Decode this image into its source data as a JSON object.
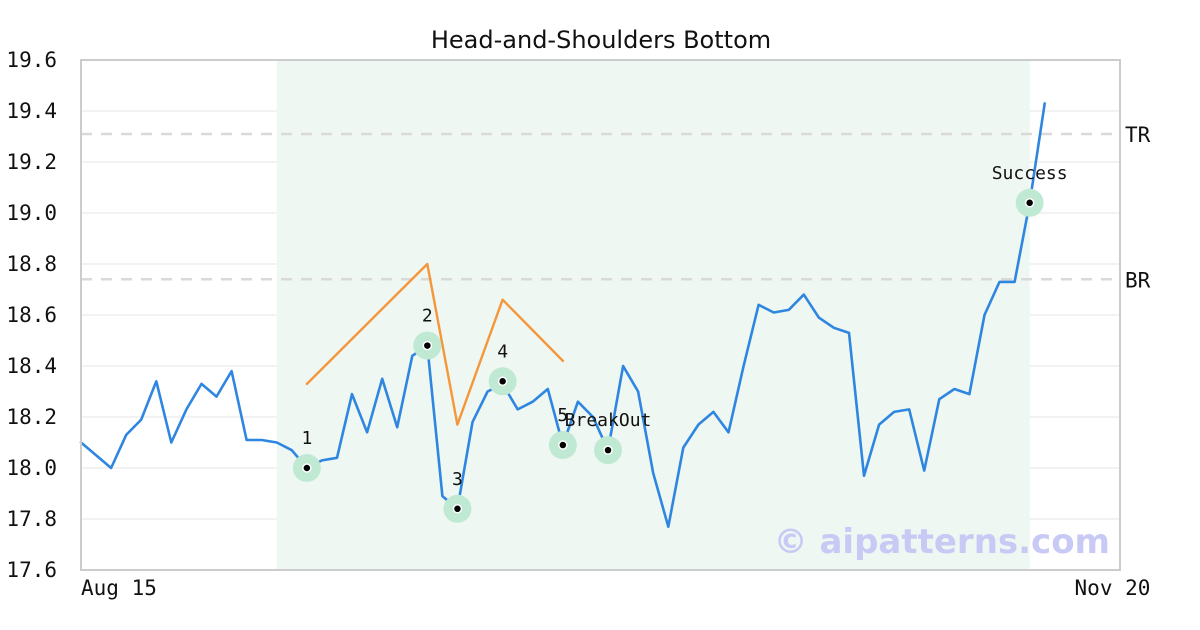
{
  "chart_data": {
    "type": "line",
    "title": "Head-and-Shoulders Bottom",
    "ylim": [
      17.6,
      19.6
    ],
    "xlim": [
      0,
      69
    ],
    "y_ticks": [
      "17.6",
      "17.8",
      "18.0",
      "18.2",
      "18.4",
      "18.6",
      "18.8",
      "19.0",
      "19.2",
      "19.4",
      "19.6"
    ],
    "x_tick_labels": [
      {
        "x": 0,
        "label": "Aug 15"
      },
      {
        "x": 68.5,
        "label": "Nov 20"
      }
    ],
    "grid": true,
    "pattern_span": [
      13,
      63
    ],
    "series": [
      {
        "color": "#2f86e0",
        "x": [
          0,
          1,
          2,
          3,
          4,
          5,
          6,
          7,
          8,
          9,
          10,
          11,
          12,
          13,
          14,
          15,
          16,
          17,
          18,
          19,
          20,
          21,
          22,
          23,
          24,
          25,
          26,
          27,
          28,
          29,
          30,
          31,
          32,
          33,
          34,
          35,
          36,
          37,
          38,
          39,
          40,
          41,
          42,
          43,
          44,
          45,
          46,
          47,
          48,
          49,
          50,
          51,
          52,
          53,
          54,
          55,
          56,
          57,
          58,
          59,
          60,
          61,
          62,
          63,
          64
        ],
        "values": [
          18.1,
          18.05,
          18.0,
          18.13,
          18.19,
          18.34,
          18.1,
          18.23,
          18.33,
          18.28,
          18.38,
          18.11,
          18.11,
          18.1,
          18.07,
          18.0,
          18.03,
          18.04,
          18.29,
          18.14,
          18.35,
          18.16,
          18.44,
          18.48,
          17.89,
          17.84,
          18.18,
          18.3,
          18.33,
          18.23,
          18.26,
          18.31,
          18.09,
          18.26,
          18.2,
          18.07,
          18.4,
          18.3,
          17.98,
          17.77,
          18.08,
          18.17,
          18.22,
          18.14,
          18.4,
          18.64,
          18.61,
          18.62,
          18.68,
          18.59,
          18.55,
          18.53,
          17.97,
          18.17,
          18.22,
          18.23,
          17.99,
          18.27,
          18.31,
          18.29,
          18.6,
          18.73,
          18.73,
          19.04,
          19.43
        ]
      },
      {
        "color": "#f5963a",
        "x": [
          15,
          23,
          25,
          28,
          32
        ],
        "values": [
          18.33,
          18.8,
          18.17,
          18.66,
          18.42
        ]
      }
    ],
    "reference_lines": [
      {
        "y": 19.31,
        "label": "TR"
      },
      {
        "y": 18.74,
        "label": "BR"
      }
    ],
    "annotations": [
      {
        "x": 15,
        "y": 18.0,
        "label": "1"
      },
      {
        "x": 23,
        "y": 18.48,
        "label": "2"
      },
      {
        "x": 25,
        "y": 17.84,
        "label": "3"
      },
      {
        "x": 28,
        "y": 18.34,
        "label": "4"
      },
      {
        "x": 32,
        "y": 18.09,
        "label": "5"
      },
      {
        "x": 35,
        "y": 18.07,
        "label": "BreakOut"
      },
      {
        "x": 63,
        "y": 19.04,
        "label": "Success"
      }
    ],
    "watermark": "© aipatterns.com"
  }
}
